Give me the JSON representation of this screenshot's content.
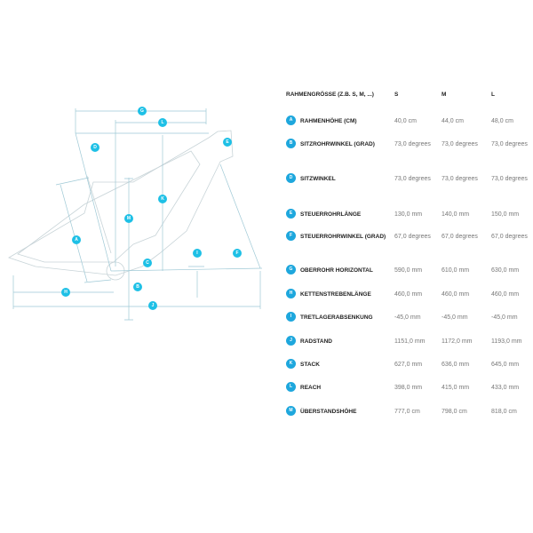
{
  "table": {
    "header": {
      "label": "RAHMENGRÖSSE (Z.B. S, M, ...)",
      "sizes": [
        "S",
        "M",
        "L"
      ]
    },
    "rows": [
      {
        "letter": "A",
        "label": "RAHMENHÖHE (CM)",
        "s": "40,0 cm",
        "m": "44,0 cm",
        "l": "48,0 cm"
      },
      {
        "letter": "B",
        "label": "SITZROHRWINKEL (GRAD)",
        "s": "73,0 degrees",
        "m": "73,0 degrees",
        "l": "73,0 degrees"
      },
      {
        "letter": "D",
        "label": "SITZWINKEL",
        "s": "73,0 degrees",
        "m": "73,0 degrees",
        "l": "73,0 degrees"
      },
      {
        "letter": "E",
        "label": "STEUERROHRLÄNGE",
        "s": "130,0 mm",
        "m": "140,0 mm",
        "l": "150,0 mm"
      },
      {
        "letter": "F",
        "label": "STEUERROHRWINKEL (GRAD)",
        "s": "67,0 degrees",
        "m": "67,0 degrees",
        "l": "67,0 degrees"
      },
      {
        "letter": "G",
        "label": "OBERROHR HORIZONTAL",
        "s": "590,0 mm",
        "m": "610,0 mm",
        "l": "630,0 mm"
      },
      {
        "letter": "H",
        "label": "KETTENSTREBENLÄNGE",
        "s": "460,0 mm",
        "m": "460,0 mm",
        "l": "460,0 mm"
      },
      {
        "letter": "I",
        "label": "TRETLAGERABSENKUNG",
        "s": "-45,0 mm",
        "m": "-45,0 mm",
        "l": "-45,0 mm"
      },
      {
        "letter": "J",
        "label": "RADSTAND",
        "s": "1151,0 mm",
        "m": "1172,0 mm",
        "l": "1193,0 mm"
      },
      {
        "letter": "K",
        "label": "STACK",
        "s": "627,0 mm",
        "m": "636,0 mm",
        "l": "645,0 mm"
      },
      {
        "letter": "L",
        "label": "REACH",
        "s": "398,0 mm",
        "m": "415,0 mm",
        "l": "433,0 mm"
      },
      {
        "letter": "M",
        "label": "ÜBERSTANDSHÖHE",
        "s": "777,0 cm",
        "m": "798,0 cm",
        "l": "818,0 cm"
      }
    ]
  },
  "diagram": {
    "labels": [
      "G",
      "L",
      "D",
      "E",
      "K",
      "M",
      "A",
      "I",
      "F",
      "C",
      "B",
      "H",
      "J"
    ]
  },
  "colors": {
    "accent": "#1ea7dd",
    "line": "#9fc9d6"
  }
}
